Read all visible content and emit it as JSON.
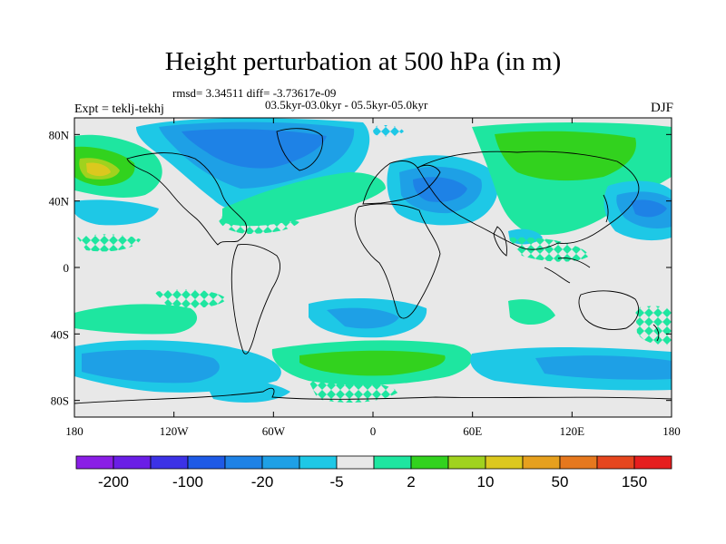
{
  "title": "Height perturbation at 500 hPa (in m)",
  "stats": "rmsd= 3.34511 diff= -3.73617e-09",
  "period": "03.5kyr-03.0kyr - 05.5kyr-05.0kyr",
  "expt": "Expt = teklj-tekhj",
  "season": "DJF",
  "map": {
    "lon_ticks": [
      "180",
      "120W",
      "60W",
      "0",
      "60E",
      "120E",
      "180"
    ],
    "lat_ticks": [
      "80N",
      "40N",
      "0",
      "40S",
      "80S"
    ],
    "background_color": "#e8e8e8",
    "coast_color": "#000000"
  },
  "colorbar": {
    "colors": [
      "#8a1ee6",
      "#6a1ee6",
      "#3c32e6",
      "#1e5ae6",
      "#1e82e6",
      "#1ea0e6",
      "#1ec8e6",
      "#e8e8e8",
      "#1ee6a0",
      "#32d21e",
      "#a0d21e",
      "#dcc81e",
      "#e6a01e",
      "#e6781e",
      "#e6461e",
      "#e61e1e"
    ],
    "labels": [
      "-200",
      "-100",
      "-20",
      "-5",
      "2",
      "10",
      "50",
      "150"
    ]
  }
}
